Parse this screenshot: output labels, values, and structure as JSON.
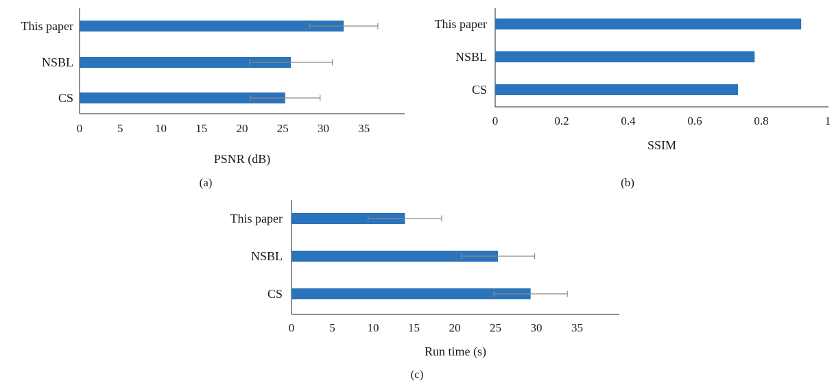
{
  "colors": {
    "bar": "#2b73bb",
    "error_bar": "#8a8a8a",
    "axis": "#222222"
  },
  "chart_data": [
    {
      "type": "bar",
      "orientation": "horizontal",
      "panel_label": "(a)",
      "title": "",
      "xlabel": "PSNR (dB)",
      "ylabel": "",
      "categories": [
        "This paper",
        "NSBL",
        "CS"
      ],
      "values": [
        32.5,
        26,
        25.3
      ],
      "error": [
        4.2,
        5.1,
        4.3
      ],
      "xlim": [
        0,
        40
      ],
      "xticks": [
        0,
        5,
        10,
        15,
        20,
        25,
        30,
        35
      ],
      "grid": false
    },
    {
      "type": "bar",
      "orientation": "horizontal",
      "panel_label": "(b)",
      "title": "",
      "xlabel": "SSIM",
      "ylabel": "",
      "categories": [
        "This paper",
        "NSBL",
        "CS"
      ],
      "values": [
        0.92,
        0.78,
        0.73
      ],
      "xlim": [
        0,
        1
      ],
      "xticks": [
        "0",
        "0.2",
        "0.4",
        "0.6",
        "0.8",
        "1"
      ],
      "grid": false
    },
    {
      "type": "bar",
      "orientation": "horizontal",
      "panel_label": "(c)",
      "title": "",
      "xlabel": "Run time (s)",
      "ylabel": "",
      "categories": [
        "This paper",
        "NSBL",
        "CS"
      ],
      "values": [
        13.9,
        25.3,
        29.3
      ],
      "error": [
        4.5,
        4.5,
        4.5
      ],
      "xlim": [
        0,
        40
      ],
      "xticks": [
        0,
        5,
        10,
        15,
        20,
        25,
        30,
        35
      ],
      "grid": false
    }
  ]
}
